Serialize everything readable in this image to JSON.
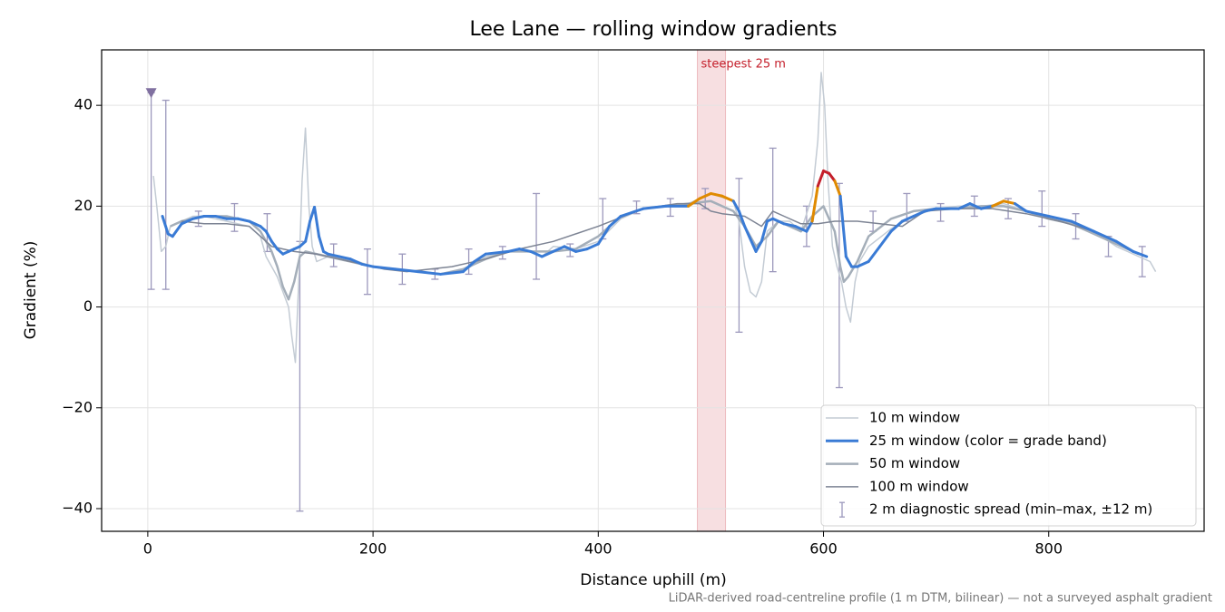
{
  "chart_data": {
    "type": "line",
    "title": "Lee Lane — rolling window gradients",
    "x_label": "Distance uphill (m)",
    "y_label": "Gradient (%)",
    "footnote": "LiDAR-derived road-centreline profile (1 m DTM, bilinear) — not a surveyed asphalt gradient",
    "xlim": [
      -41,
      938
    ],
    "ylim": [
      -44.5,
      51
    ],
    "xticks": [
      0,
      200,
      400,
      600,
      800
    ],
    "yticks": [
      {
        "value": -40,
        "label": "−40"
      },
      {
        "value": -20,
        "label": "−20"
      },
      0,
      20,
      40
    ],
    "grid": true,
    "legend": "lower right",
    "highlight": {
      "xlim": [
        488,
        513
      ],
      "label": "steepest 25 m",
      "color": "#c41e2a"
    },
    "marker": {
      "x": 3,
      "y": 42.5,
      "color": "#8070a0"
    },
    "series": [
      {
        "name": "10 m window",
        "color": "#c3cbd4",
        "width": 1.5,
        "x": [
          5,
          8,
          12,
          16,
          20,
          30,
          40,
          50,
          60,
          70,
          80,
          90,
          100,
          105,
          110,
          115,
          120,
          125,
          128,
          131,
          134,
          137,
          140,
          143,
          146,
          150,
          160,
          170,
          180,
          200,
          220,
          240,
          260,
          280,
          300,
          320,
          340,
          350,
          360,
          380,
          400,
          420,
          440,
          460,
          480,
          500,
          520,
          525,
          530,
          535,
          540,
          545,
          550,
          560,
          570,
          580,
          590,
          595,
          598,
          601,
          604,
          608,
          612,
          616,
          620,
          624,
          628,
          632,
          640,
          660,
          680,
          700,
          720,
          740,
          760,
          780,
          800,
          820,
          840,
          860,
          880,
          890,
          895
        ],
        "values": [
          26,
          20,
          11,
          12,
          16,
          17,
          18,
          18,
          17.5,
          17,
          16.5,
          16,
          14,
          10,
          8,
          6,
          3,
          0,
          -6,
          -11,
          5,
          25,
          35.5,
          20,
          12,
          9,
          10,
          10,
          9.5,
          8,
          7.5,
          7,
          6.5,
          7,
          10,
          11,
          11,
          10,
          12,
          11.5,
          13,
          17.5,
          19.5,
          20,
          20.5,
          22.5,
          21,
          17,
          8,
          3,
          2,
          5,
          15,
          17,
          17,
          15,
          22,
          33,
          46.5,
          40,
          25,
          12,
          8,
          5,
          0,
          -3,
          5,
          9,
          12,
          15.5,
          18,
          19.5,
          20,
          20,
          20.5,
          19,
          18,
          17,
          15,
          12,
          10,
          9,
          7
        ]
      },
      {
        "name": "25 m window (color = grade band)",
        "color": "#3a7bd5",
        "width": 3,
        "grade_bands": [
          {
            "above": 20,
            "color": "#e08a00"
          },
          {
            "above": 25,
            "color": "#c41e2a"
          }
        ],
        "x": [
          13,
          18,
          22,
          30,
          40,
          50,
          60,
          70,
          80,
          90,
          100,
          105,
          110,
          115,
          120,
          125,
          130,
          135,
          140,
          144,
          148,
          152,
          156,
          160,
          170,
          180,
          190,
          200,
          220,
          240,
          260,
          280,
          290,
          300,
          320,
          330,
          340,
          350,
          360,
          370,
          380,
          390,
          400,
          410,
          420,
          440,
          460,
          480,
          490,
          500,
          510,
          520,
          525,
          530,
          540,
          545,
          550,
          555,
          565,
          575,
          585,
          590,
          595,
          600,
          605,
          610,
          615,
          620,
          625,
          630,
          640,
          650,
          660,
          670,
          680,
          690,
          700,
          720,
          730,
          740,
          750,
          760,
          770,
          780,
          800,
          820,
          840,
          860,
          875,
          887
        ],
        "values": [
          18,
          14.5,
          14,
          16.5,
          17.5,
          18,
          18,
          17.5,
          17.5,
          17,
          16,
          15,
          13,
          11.5,
          10.5,
          11,
          11.5,
          12,
          13,
          17,
          19.8,
          14,
          11,
          10.5,
          10,
          9.5,
          8.5,
          8,
          7.5,
          7,
          6.5,
          7,
          9,
          10.5,
          11,
          11.5,
          11,
          10,
          11,
          12,
          11,
          11.5,
          12.5,
          16,
          18,
          19.5,
          20,
          20,
          21.5,
          22.5,
          22,
          21,
          19,
          16,
          11,
          13,
          17,
          17.5,
          16.5,
          16,
          15,
          17,
          24,
          27,
          26.5,
          25,
          22,
          10,
          8,
          8,
          9,
          12,
          15,
          17,
          18,
          19,
          19.5,
          19.5,
          20.5,
          19.5,
          20,
          21,
          20.5,
          19,
          18,
          17,
          15,
          13,
          11,
          10
        ]
      },
      {
        "name": "50 m window",
        "color": "#a4aeb9",
        "width": 2.5,
        "x": [
          20,
          30,
          50,
          70,
          90,
          100,
          110,
          115,
          120,
          125,
          130,
          135,
          140,
          150,
          160,
          180,
          200,
          220,
          240,
          260,
          280,
          300,
          320,
          340,
          360,
          380,
          400,
          420,
          440,
          460,
          480,
          500,
          520,
          530,
          540,
          550,
          560,
          570,
          580,
          590,
          600,
          610,
          615,
          618,
          622,
          630,
          640,
          660,
          680,
          700,
          720,
          740,
          760,
          780,
          800,
          820,
          840,
          860,
          880
        ],
        "values": [
          16,
          17,
          18,
          18,
          17,
          15,
          11,
          8,
          4,
          1.5,
          5,
          10,
          11,
          10.5,
          10,
          9,
          8,
          7.5,
          7,
          6.5,
          7.5,
          9.5,
          11,
          11,
          11,
          11.5,
          14,
          18,
          19.5,
          20,
          20.5,
          21,
          19,
          16,
          12,
          14,
          17,
          16,
          15,
          18,
          20,
          15,
          8,
          5,
          6,
          9,
          14,
          17.5,
          19,
          19.5,
          19.5,
          20,
          20,
          19,
          17.5,
          16.5,
          14.5,
          12.5,
          10.5
        ]
      },
      {
        "name": "100 m window",
        "color": "#7d8494",
        "width": 1.5,
        "x": [
          30,
          50,
          70,
          90,
          100,
          110,
          120,
          130,
          150,
          170,
          190,
          210,
          230,
          250,
          270,
          300,
          330,
          360,
          400,
          440,
          470,
          490,
          500,
          510,
          530,
          545,
          555,
          565,
          580,
          595,
          610,
          630,
          650,
          670,
          690,
          720,
          750,
          780,
          810,
          840,
          860
        ],
        "values": [
          17,
          16.5,
          16.5,
          16,
          14,
          12,
          11.5,
          11,
          10.5,
          9.5,
          8.5,
          7.5,
          7,
          7.5,
          8,
          9.5,
          11.5,
          13,
          16,
          19.5,
          20.5,
          20.5,
          19,
          18.5,
          18,
          16,
          19,
          18,
          16.5,
          16.5,
          17,
          17,
          16.5,
          16,
          19,
          19.5,
          19.5,
          18.5,
          17,
          15,
          13
        ]
      }
    ],
    "errorbars": {
      "name": "2 m diagnostic spread (min–max, ±12 m)",
      "color": "#9c98bc",
      "x": [
        3,
        16,
        45,
        77,
        106,
        135,
        165,
        195,
        226,
        255,
        285,
        315,
        345,
        375,
        404,
        434,
        464,
        495,
        525,
        555,
        585,
        614,
        644,
        674,
        704,
        734,
        764,
        794,
        824,
        853,
        883
      ],
      "low": [
        3.5,
        3.5,
        16,
        15,
        11,
        -40.5,
        8,
        2.5,
        4.5,
        5.5,
        6.5,
        9.5,
        5.5,
        10,
        13.5,
        18.5,
        18,
        19.5,
        -5,
        7,
        12,
        -16,
        15,
        17,
        17,
        18,
        17.5,
        16,
        13.5,
        10,
        6
      ],
      "high": [
        42.5,
        41,
        19,
        20.5,
        18.5,
        13,
        12.5,
        11.5,
        10.5,
        7.5,
        11.5,
        12,
        22.5,
        12.5,
        21.5,
        21,
        21.5,
        23.5,
        25.5,
        31.5,
        20,
        24.5,
        19,
        22.5,
        20.5,
        22,
        21.5,
        23,
        18.5,
        14,
        12
      ]
    }
  }
}
